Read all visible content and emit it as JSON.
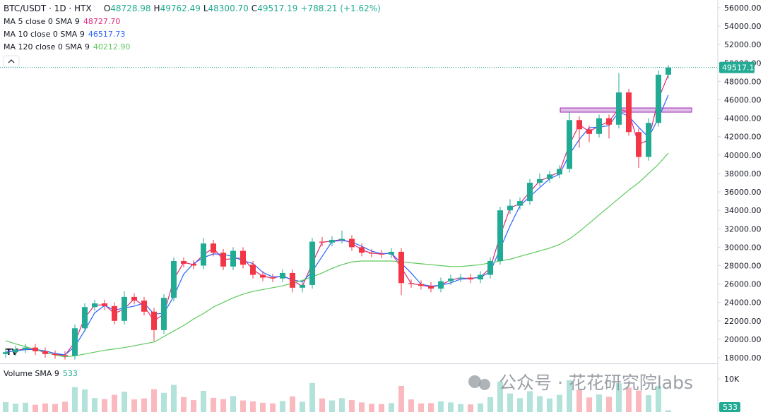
{
  "chart_data": {
    "type": "candlestick",
    "title": "BTC/USDT · 1D · HTX",
    "ohlc_letters": [
      "O",
      "H",
      "L",
      "C"
    ],
    "change": "+788.21 (+1.62%)",
    "colors": {
      "up": "#22ab94",
      "down": "#f23645"
    },
    "open": [
      18400,
      18600,
      18900,
      19100,
      18700,
      18400,
      18300,
      18200,
      21200,
      23500,
      23900,
      23600,
      22000,
      24600,
      24200,
      23000,
      21000,
      24500,
      28500,
      28200,
      28000,
      30400,
      29400,
      27900,
      29600,
      28100,
      27000,
      26700,
      26600,
      27200,
      25600,
      25900,
      30600,
      30500,
      30800,
      30900,
      30000,
      29400,
      29300,
      29200,
      29500,
      26100,
      26000,
      25800,
      25500,
      26300,
      26600,
      26700,
      26500,
      27000,
      28500,
      34000,
      34500,
      35000,
      37000,
      37400,
      37900,
      38500,
      43800,
      42800,
      42300,
      44000,
      43300,
      46800,
      42500,
      39800,
      43500,
      48728.98
    ],
    "high": [
      19000,
      19300,
      19500,
      19500,
      19100,
      18800,
      18700,
      21600,
      23900,
      24300,
      24300,
      24000,
      25200,
      25000,
      24600,
      23400,
      24900,
      28900,
      28900,
      28600,
      31000,
      30800,
      29800,
      30000,
      30000,
      28500,
      27400,
      27100,
      27600,
      27600,
      26300,
      31000,
      31100,
      31200,
      31800,
      31300,
      30400,
      29800,
      29700,
      29900,
      29900,
      26500,
      26400,
      26200,
      26700,
      27000,
      27100,
      27100,
      27400,
      28900,
      34400,
      35200,
      35400,
      37400,
      38000,
      38300,
      38900,
      44700,
      44200,
      43200,
      44400,
      44400,
      48900,
      47200,
      42900,
      44000,
      49200,
      49762.49
    ],
    "low": [
      18000,
      18200,
      18500,
      18300,
      18000,
      17900,
      17800,
      17800,
      20800,
      23100,
      23200,
      21600,
      21600,
      23800,
      22600,
      19800,
      20600,
      24100,
      27800,
      27600,
      27600,
      29000,
      27500,
      27500,
      27700,
      26600,
      26300,
      26200,
      26200,
      25100,
      25100,
      25500,
      30100,
      30100,
      30400,
      29600,
      29000,
      28900,
      28800,
      28800,
      24800,
      25600,
      25400,
      25100,
      25100,
      25900,
      26200,
      26100,
      26100,
      26600,
      28100,
      33600,
      34100,
      34600,
      36600,
      37000,
      37500,
      38100,
      40800,
      41400,
      41900,
      41800,
      42900,
      42100,
      38600,
      39400,
      43100,
      48300.7
    ],
    "low_labels": {
      "67": "48300.70"
    },
    "close": [
      18600,
      18900,
      19100,
      18700,
      18400,
      18300,
      18200,
      21200,
      23500,
      23900,
      23600,
      22000,
      24600,
      24200,
      23000,
      21000,
      24500,
      28500,
      28200,
      28000,
      30400,
      29400,
      27900,
      29600,
      28100,
      27000,
      26700,
      26600,
      27200,
      25600,
      25900,
      30600,
      30500,
      30800,
      30900,
      30000,
      29400,
      29300,
      29200,
      29500,
      26100,
      26000,
      25800,
      25500,
      26300,
      26600,
      26700,
      26500,
      27000,
      28500,
      34000,
      34500,
      35000,
      37000,
      37400,
      37900,
      38500,
      43800,
      42800,
      42300,
      44000,
      43300,
      46800,
      42500,
      39800,
      43500,
      48728.98,
      49517.19
    ],
    "ma": [
      {
        "name": "MA 5 close 0 SMA 9",
        "color": "#e0287d",
        "values": [
          18600,
          18750,
          19000,
          18900,
          18550,
          18350,
          18250,
          19700,
          22350,
          23700,
          23750,
          22800,
          23300,
          24400,
          23600,
          22000,
          22750,
          26500,
          28350,
          28100,
          29200,
          29900,
          28650,
          28750,
          28850,
          27550,
          26850,
          26650,
          26900,
          26400,
          25750,
          28250,
          30550,
          30650,
          30850,
          30450,
          29700,
          29350,
          29250,
          29350,
          27800,
          26050,
          25900,
          25650,
          25900,
          26450,
          26650,
          26600,
          26750,
          27750,
          31250,
          34250,
          34750,
          36000,
          37200,
          37650,
          38200,
          41150,
          43300,
          42550,
          43150,
          43650,
          45050,
          44650,
          41150,
          41650,
          46100,
          48727.7
        ],
        "value_labels": {
          "67": "48727.70"
        }
      },
      {
        "name": "MA 10 close 0 SMA 9",
        "color": "#2962ff",
        "values": [
          18600,
          18750,
          18870,
          18900,
          18730,
          18470,
          18300,
          19230,
          20970,
          22870,
          23670,
          23170,
          23400,
          23600,
          23930,
          22730,
          22830,
          24670,
          27070,
          28230,
          28870,
          29270,
          29230,
          28970,
          28530,
          28230,
          27270,
          26770,
          26830,
          26470,
          26230,
          27370,
          29000,
          30630,
          30730,
          30570,
          30100,
          29570,
          29300,
          29330,
          28270,
          27200,
          25970,
          25770,
          25870,
          26130,
          26530,
          26600,
          26730,
          27330,
          29830,
          32330,
          34500,
          35500,
          36470,
          37430,
          37930,
          40070,
          41700,
          42970,
          43030,
          43200,
          44700,
          44200,
          43030,
          41930,
          44010,
          46517.73
        ]
      },
      {
        "name": "MA 120 close 0 SMA 9",
        "color": "#5cc95c",
        "values": [
          19850,
          19500,
          19200,
          18900,
          18600,
          18300,
          18100,
          18200,
          18400,
          18600,
          18800,
          18950,
          19100,
          19300,
          19500,
          19700,
          20300,
          20900,
          21500,
          22200,
          22800,
          23500,
          24000,
          24500,
          24900,
          25200,
          25400,
          25600,
          25800,
          26100,
          26400,
          26800,
          27200,
          27700,
          28100,
          28400,
          28500,
          28500,
          28500,
          28500,
          28400,
          28300,
          28200,
          28100,
          28000,
          27900,
          27900,
          28000,
          28100,
          28300,
          28500,
          28700,
          29000,
          29300,
          29600,
          29900,
          30300,
          30900,
          31700,
          32600,
          33500,
          34400,
          35300,
          36200,
          37000,
          38000,
          39000,
          40212.9
        ],
        "value_labels": {
          "67": "40212.90"
        }
      }
    ],
    "ylim": [
      17390,
      56840
    ],
    "yticks": [
      {
        "value": 18000,
        "label": "18000.00"
      },
      {
        "value": 20000,
        "label": "20000.00"
      },
      {
        "value": 22000,
        "label": "22000.00"
      },
      {
        "value": 24000,
        "label": "24000.00"
      },
      {
        "value": 26000,
        "label": "26000.00"
      },
      {
        "value": 28000,
        "label": "28000.00"
      },
      {
        "value": 30000,
        "label": "30000.00"
      },
      {
        "value": 32000,
        "label": "32000.00"
      },
      {
        "value": 34000,
        "label": "34000.00"
      },
      {
        "value": 36000,
        "label": "36000.00"
      },
      {
        "value": 38000,
        "label": "38000.00"
      },
      {
        "value": 40000,
        "label": "40000.00"
      },
      {
        "value": 42000,
        "label": "42000.00"
      },
      {
        "value": 44000,
        "label": "44000.00"
      },
      {
        "value": 46000,
        "label": "46000.00"
      },
      {
        "value": 48000,
        "label": "48000.00"
      },
      {
        "value": 50000,
        "label": "50000.00"
      },
      {
        "value": 52000,
        "label": "52000.00"
      },
      {
        "value": 54000,
        "label": "54000.00"
      },
      {
        "value": 56000,
        "label": "56000.00"
      }
    ],
    "volume": {
      "name": "Volume SMA 9",
      "values": [
        3000,
        2500,
        2800,
        2200,
        2600,
        2400,
        3100,
        7500,
        6800,
        4200,
        3900,
        5200,
        6100,
        3800,
        4100,
        6900,
        5800,
        8200,
        4500,
        3600,
        6400,
        4300,
        3900,
        4800,
        3500,
        3200,
        2800,
        2600,
        3300,
        4700,
        3100,
        8800,
        4100,
        3500,
        4200,
        3600,
        2900,
        2500,
        2400,
        2700,
        7900,
        3800,
        2600,
        2700,
        3200,
        2900,
        2400,
        2300,
        2600,
        4500,
        9200,
        5600,
        4200,
        6300,
        4800,
        4100,
        5200,
        9600,
        6700,
        4400,
        5300,
        4600,
        8700,
        7400,
        6500,
        5100,
        7900,
        533
      ],
      "ylim": [
        0,
        14500
      ],
      "yticks": [
        {
          "value": 10000,
          "label": "10K"
        }
      ]
    },
    "watermark": "公众号 · 花花研究院labs"
  }
}
